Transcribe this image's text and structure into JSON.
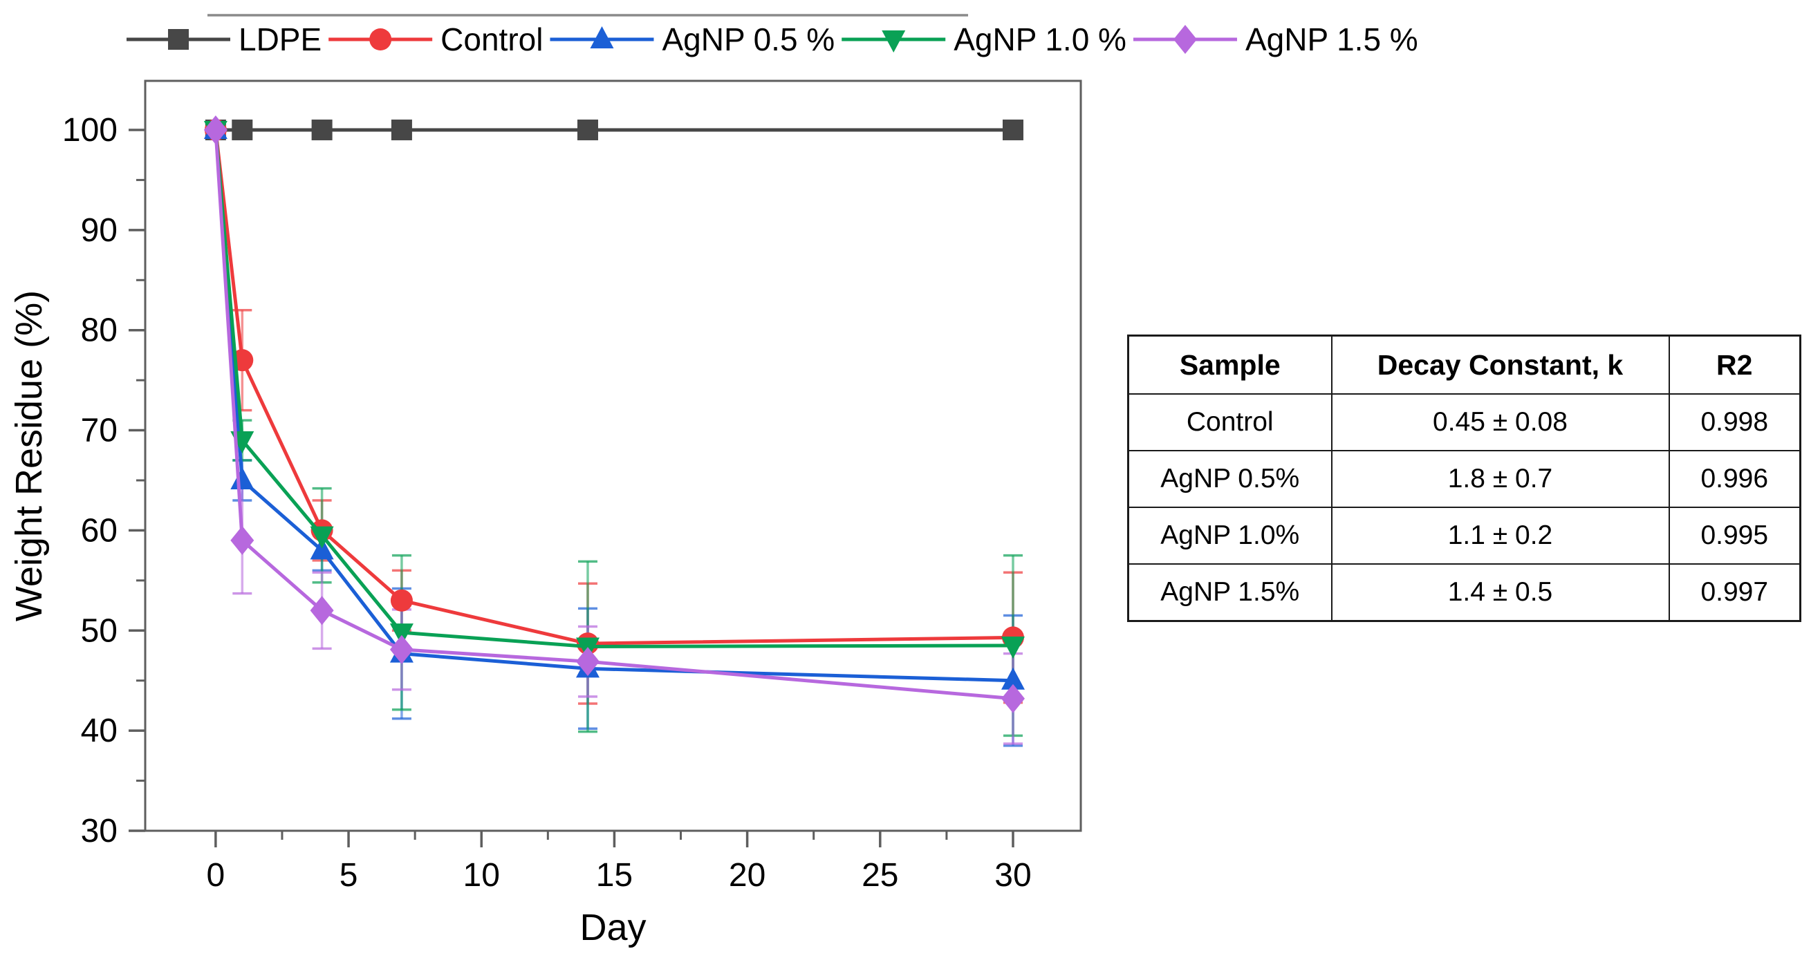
{
  "chart_data": {
    "type": "line",
    "x": [
      0,
      1,
      4,
      7,
      14,
      30
    ],
    "xlabel": "Day",
    "ylabel": "Weight Residue (%)",
    "xlim": [
      -2.65,
      32.55
    ],
    "ylim": [
      30,
      104.9
    ],
    "x_major_ticks": [
      0,
      5,
      10,
      15,
      20,
      25,
      30
    ],
    "x_minor_ticks": [
      2.5,
      7.5,
      12.5,
      17.5,
      22.5,
      27.5
    ],
    "y_major_ticks": [
      30,
      40,
      50,
      60,
      70,
      80,
      90,
      100
    ],
    "y_minor_ticks": [
      35,
      45,
      55,
      65,
      75,
      85,
      95
    ],
    "grid": false,
    "legend_position": "top",
    "axis_color": "#5e5e5e",
    "legend_rule_color": "#8a8a8a",
    "series": [
      {
        "name": "LDPE",
        "marker": "square",
        "color": "#474747",
        "values": [
          100,
          100,
          100,
          100,
          100,
          100
        ],
        "errors": [
          0,
          0,
          0,
          0,
          0,
          0
        ]
      },
      {
        "name": "Control",
        "marker": "circle",
        "color": "#ee3a3c",
        "values": [
          100,
          77,
          60,
          53,
          48.7,
          49.3
        ],
        "errors": [
          0,
          5,
          3,
          3,
          6,
          6.5
        ]
      },
      {
        "name": "AgNP 0.5 %",
        "marker": "triangle-up",
        "color": "#1b5fd6",
        "values": [
          100,
          65,
          58,
          47.7,
          46.2,
          45
        ],
        "errors": [
          0,
          2,
          2,
          6.5,
          6,
          6.5
        ]
      },
      {
        "name": "AgNP 1.0 %",
        "marker": "triangle-down",
        "color": "#09a155",
        "values": [
          100,
          69,
          59.5,
          49.8,
          48.4,
          48.5
        ],
        "errors": [
          0,
          2,
          4.7,
          7.7,
          8.5,
          9
        ]
      },
      {
        "name": "AgNP 1.5 %",
        "marker": "diamond",
        "color": "#b768de",
        "values": [
          100,
          59,
          52,
          48.1,
          46.9,
          43.2
        ],
        "errors": [
          0,
          5.3,
          3.8,
          4,
          3.5,
          4.5
        ]
      }
    ]
  },
  "table": {
    "headers": [
      "Sample",
      "Decay Constant, k",
      "R2"
    ],
    "rows": [
      [
        "Control",
        "0.45 ± 0.08",
        "0.998"
      ],
      [
        "AgNP 0.5%",
        "1.8 ± 0.7",
        "0.996"
      ],
      [
        "AgNP 1.0%",
        "1.1 ± 0.2",
        "0.995"
      ],
      [
        "AgNP 1.5%",
        "1.4 ± 0.5",
        "0.997"
      ]
    ]
  }
}
